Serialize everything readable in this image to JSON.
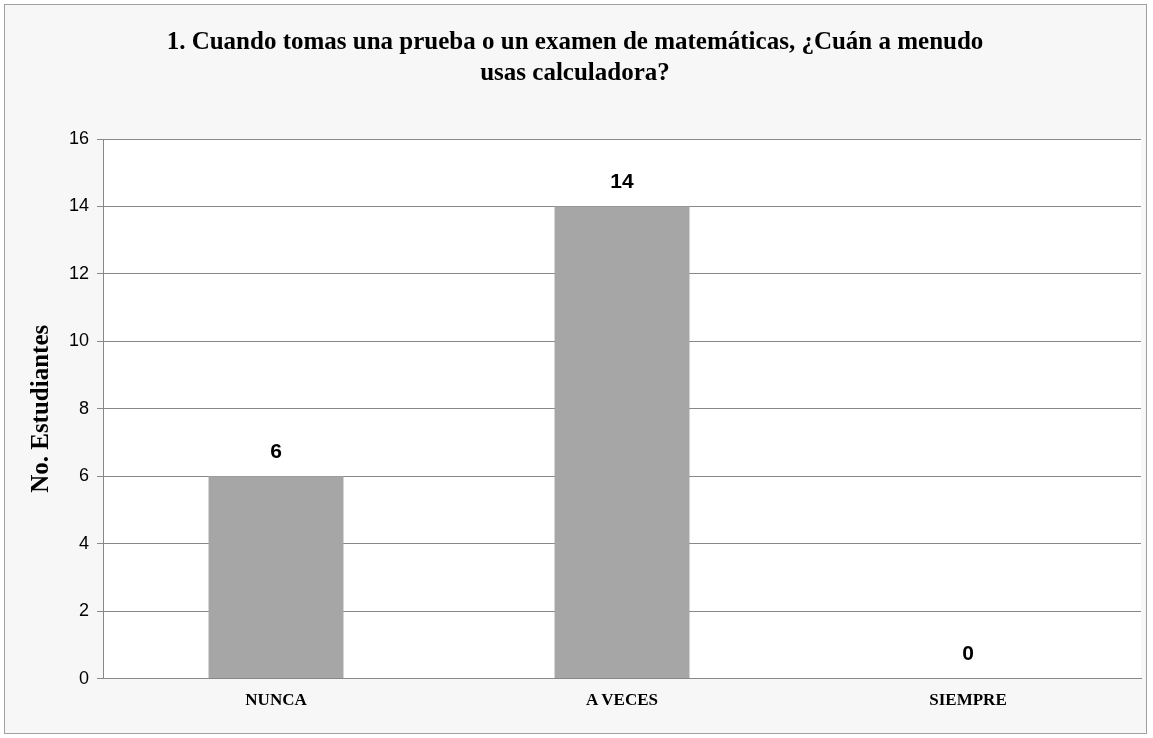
{
  "chart_data": {
    "type": "bar",
    "title": "1. Cuando tomas una prueba o un examen de matemáticas, ¿Cuán a menudo usas calculadora?",
    "ylabel": "No. Estudiantes",
    "categories": [
      "NUNCA",
      "A VECES",
      "SIEMPRE"
    ],
    "values": [
      6,
      14,
      0
    ],
    "color": "#a6a6a6",
    "ylim": [
      0,
      16
    ],
    "yticks": [
      0,
      2,
      4,
      6,
      8,
      10,
      12,
      14,
      16
    ],
    "grid": "y",
    "data_labels": true,
    "legend": false
  }
}
